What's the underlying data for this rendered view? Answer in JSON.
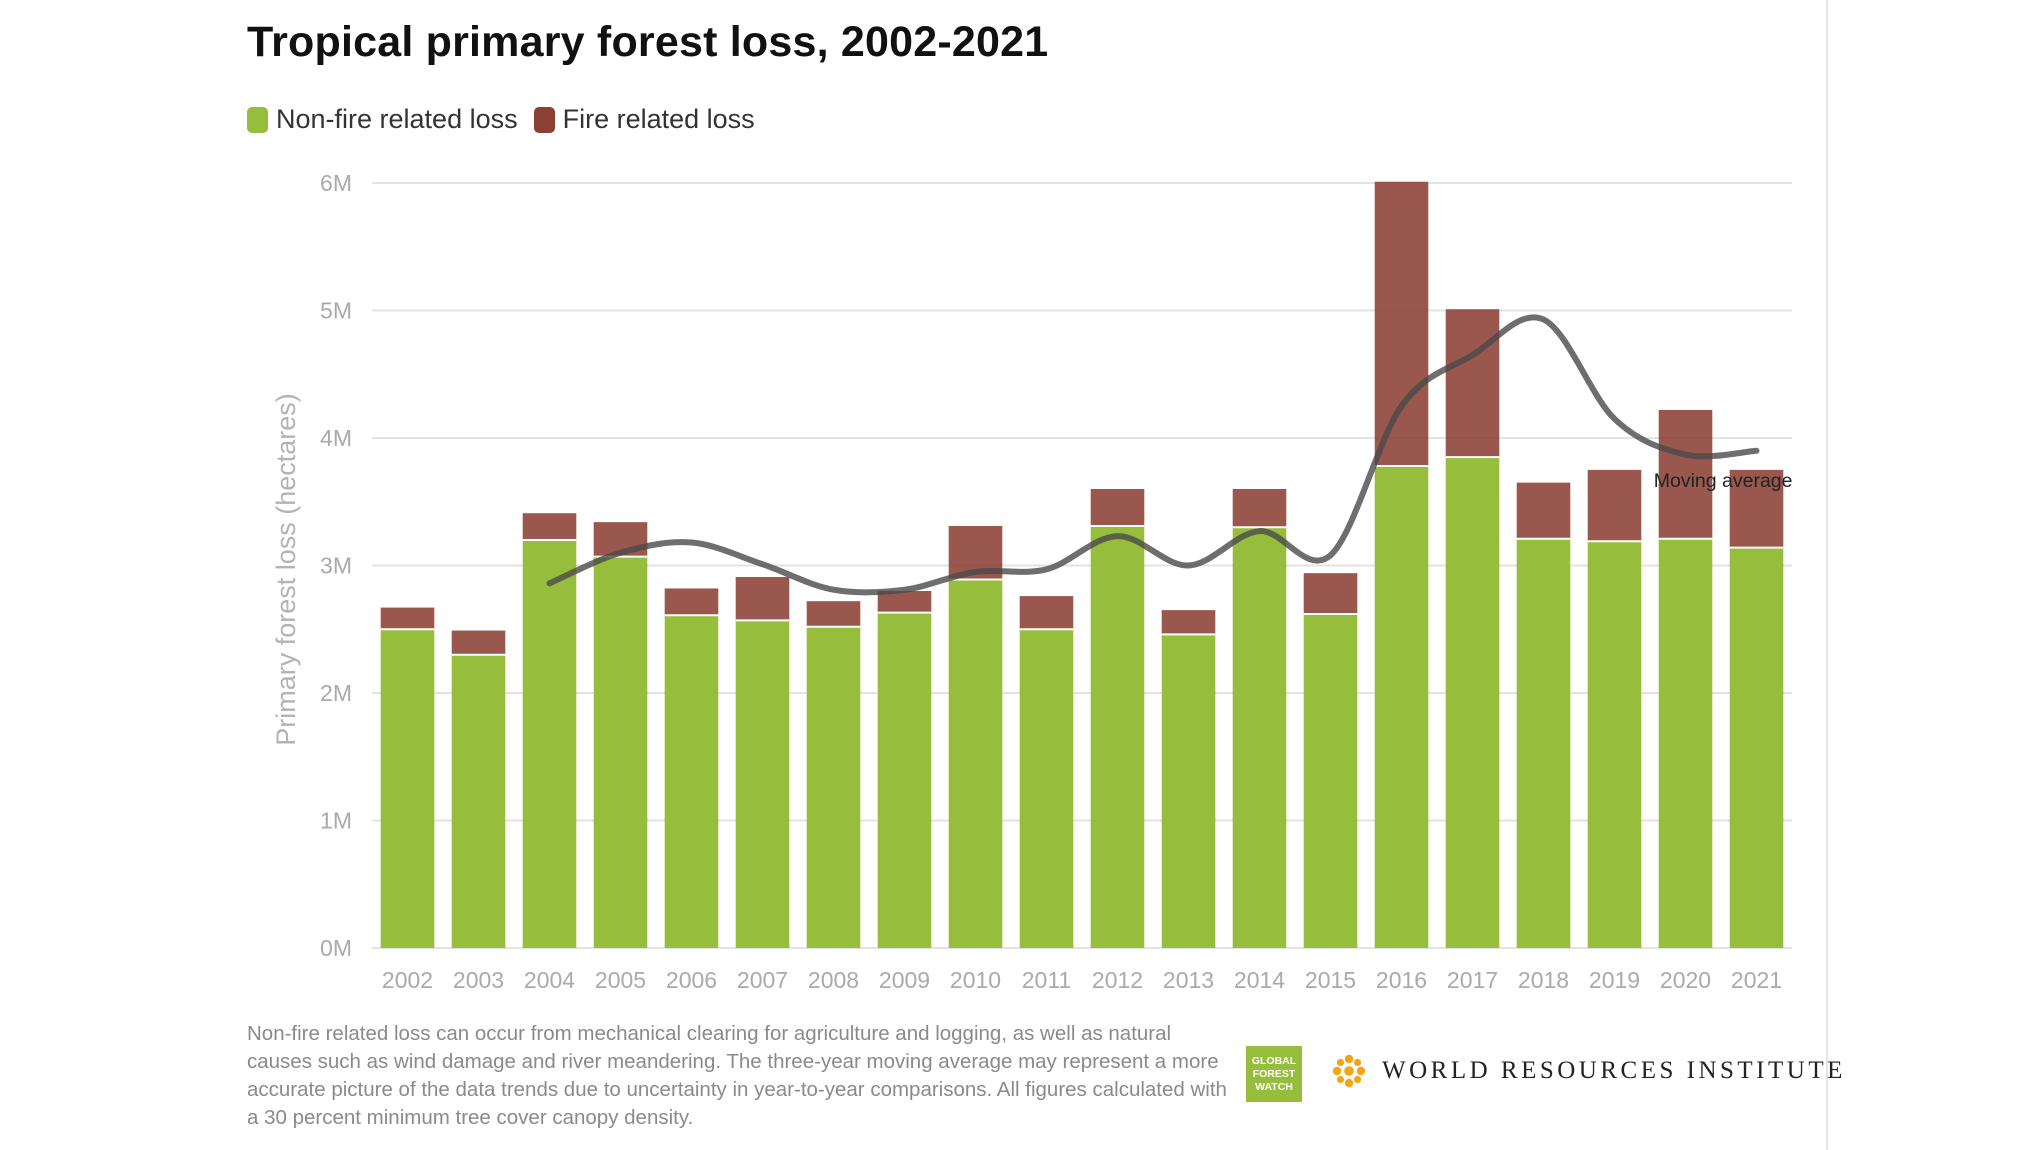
{
  "title": "Tropical primary forest loss, 2002-2021",
  "legend": [
    {
      "label": "Non-fire related loss",
      "color": "#97bd3d"
    },
    {
      "label": "Fire related loss",
      "color": "#8b4036"
    }
  ],
  "footnote": "Non-fire related loss can occur from mechanical clearing for agriculture and logging, as well as natural causes such as wind damage and river meandering. The three-year moving average may represent a more accurate picture of the data trends due to uncertainty in year-to-year comparisons. All figures calculated with a 30 percent minimum tree cover canopy density.",
  "logos": {
    "gfw": [
      "GLOBAL",
      "FOREST",
      "WATCH"
    ],
    "wri": "WORLD RESOURCES INSTITUTE",
    "gfw_icon": "global-forest-watch-logo",
    "wri_icon": "wri-flower-logo"
  },
  "chart_data": {
    "type": "bar",
    "stacked": true,
    "title": "Tropical primary forest loss, 2002-2021",
    "xlabel": "",
    "ylabel": "Primary forest loss (hectares)",
    "ylim": [
      0,
      6000000
    ],
    "yticks": [
      0,
      1000000,
      2000000,
      3000000,
      4000000,
      5000000,
      6000000
    ],
    "ytick_labels": [
      "0M",
      "1M",
      "2M",
      "3M",
      "4M",
      "5M",
      "6M"
    ],
    "grid": true,
    "legend_position": "top-left",
    "categories": [
      "2002",
      "2003",
      "2004",
      "2005",
      "2006",
      "2007",
      "2008",
      "2009",
      "2010",
      "2011",
      "2012",
      "2013",
      "2014",
      "2015",
      "2016",
      "2017",
      "2018",
      "2019",
      "2020",
      "2021"
    ],
    "series": [
      {
        "name": "Non-fire related loss",
        "color": "#97bd3d",
        "values": [
          2500000,
          2300000,
          3200000,
          3070000,
          2610000,
          2570000,
          2520000,
          2630000,
          2890000,
          2500000,
          3310000,
          2460000,
          3300000,
          2620000,
          3780000,
          3850000,
          3210000,
          3190000,
          3210000,
          3140000
        ]
      },
      {
        "name": "Fire related loss",
        "color": "#8b4036",
        "values": [
          170000,
          190000,
          210000,
          270000,
          210000,
          340000,
          200000,
          170000,
          420000,
          260000,
          290000,
          190000,
          300000,
          320000,
          2230000,
          1160000,
          440000,
          560000,
          1010000,
          610000
        ]
      },
      {
        "name": "Moving average",
        "type": "line",
        "color": "#555555",
        "x": [
          "2004",
          "2005",
          "2006",
          "2007",
          "2008",
          "2009",
          "2010",
          "2011",
          "2012",
          "2013",
          "2014",
          "2015",
          "2016",
          "2017",
          "2018",
          "2019",
          "2020",
          "2021"
        ],
        "values": [
          2860000,
          3100000,
          3180000,
          3010000,
          2810000,
          2810000,
          2950000,
          2970000,
          3230000,
          3000000,
          3270000,
          3080000,
          4250000,
          4650000,
          4930000,
          4150000,
          3870000,
          3900000
        ]
      }
    ],
    "annotations": [
      {
        "text": "Moving average",
        "x": "2021",
        "y": 3600000
      }
    ]
  }
}
